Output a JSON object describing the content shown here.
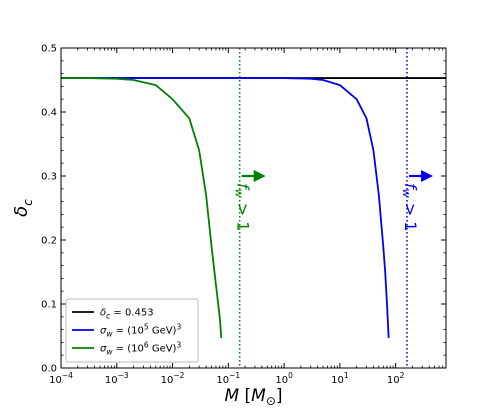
{
  "chart_data": {
    "type": "line",
    "xscale": "log",
    "xlim": [
      0.0001,
      800
    ],
    "ylim": [
      0.0,
      0.5
    ],
    "xlabel": "M [M⊙]",
    "ylabel": "δc",
    "grid": false,
    "legend_placement": "bottom-left",
    "x_ticks": [
      0.0001,
      0.001,
      0.01,
      0.1,
      1,
      10,
      100
    ],
    "x_tick_labels": [
      {
        "base": "10",
        "exp": "−4"
      },
      {
        "base": "10",
        "exp": "−3"
      },
      {
        "base": "10",
        "exp": "−2"
      },
      {
        "base": "10",
        "exp": "−1"
      },
      {
        "base": "10",
        "exp": "0"
      },
      {
        "base": "10",
        "exp": "1"
      },
      {
        "base": "10",
        "exp": "2"
      }
    ],
    "y_ticks": [
      0.0,
      0.1,
      0.2,
      0.3,
      0.4,
      0.5
    ],
    "y_tick_labels": [
      "0.0",
      "0.1",
      "0.2",
      "0.3",
      "0.4",
      "0.5"
    ],
    "series": [
      {
        "name": "δc = 0.453",
        "color": "#000000",
        "x": [
          0.0001,
          800
        ],
        "y": [
          0.453,
          0.453
        ]
      },
      {
        "name": "σw = (10⁵ GeV)³",
        "color": "#0000ee",
        "x": [
          0.0001,
          1,
          3,
          5,
          10,
          20,
          30,
          40,
          50,
          60,
          65,
          70,
          75
        ],
        "y": [
          0.453,
          0.453,
          0.452,
          0.45,
          0.442,
          0.42,
          0.39,
          0.34,
          0.27,
          0.19,
          0.15,
          0.1,
          0.047
        ]
      },
      {
        "name": "σw = (10⁶ GeV)³",
        "color": "#008000",
        "x": [
          0.0001,
          0.0003,
          0.001,
          0.002,
          0.005,
          0.01,
          0.02,
          0.03,
          0.04,
          0.05,
          0.06,
          0.07,
          0.075
        ],
        "y": [
          0.453,
          0.453,
          0.452,
          0.45,
          0.442,
          0.42,
          0.39,
          0.34,
          0.27,
          0.19,
          0.13,
          0.08,
          0.047
        ]
      }
    ],
    "vlines": [
      {
        "x": 0.16,
        "color": "#008000",
        "style": "dotted"
      },
      {
        "x": 160,
        "color": "#0000ee",
        "style": "dotted"
      }
    ],
    "annotations": [
      {
        "text": "fw > 1",
        "x": 0.16,
        "y": 0.3,
        "color": "#008000"
      },
      {
        "text": "fw > 1",
        "x": 160,
        "y": 0.3,
        "color": "#0000ee"
      }
    ],
    "legend": {
      "entries": [
        {
          "color": "#000000",
          "sym": "δ",
          "sub": "c",
          "rest": " = 0.453"
        },
        {
          "color": "#0000ee",
          "sym": "σ",
          "sub": "w",
          "rest": " = (10",
          "sup": "5",
          "after": " GeV)",
          "sup2": "3"
        },
        {
          "color": "#008000",
          "sym": "σ",
          "sub": "w",
          "rest": " = (10",
          "sup": "6",
          "after": " GeV)",
          "sup2": "3"
        }
      ]
    }
  }
}
